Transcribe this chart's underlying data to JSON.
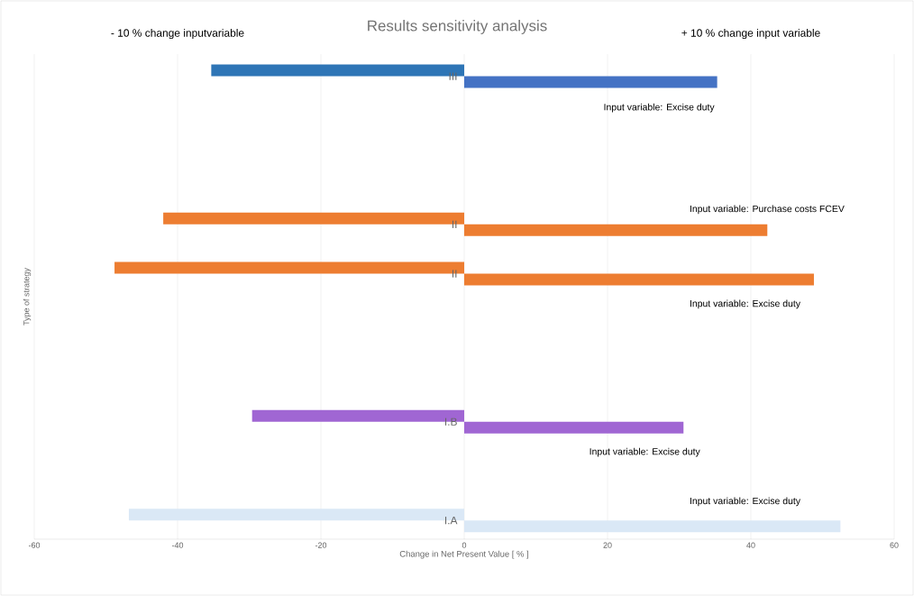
{
  "chart_data": {
    "type": "bar",
    "orientation": "horizontal",
    "title": "Results sensitivity analysis",
    "xlabel": "Change in Net Present Value [ % ]",
    "ylabel": "Type of strategy",
    "categories": [
      "III",
      null,
      null,
      "II",
      "II",
      null,
      null,
      "I.B",
      null,
      "I.A"
    ],
    "series": [
      {
        "values": [
          -35.3,
          null,
          null,
          -42.0,
          -48.8,
          null,
          null,
          -29.6,
          null,
          -46.8
        ],
        "colors": [
          "#2e75b6",
          null,
          null,
          "#ed7d31",
          "#ed7d31",
          null,
          null,
          "#a066d3",
          null,
          "#dae8f6"
        ]
      },
      {
        "values": [
          35.3,
          null,
          null,
          42.3,
          48.8,
          null,
          null,
          30.6,
          null,
          52.5
        ],
        "colors": [
          "#4472c4",
          null,
          null,
          "#ed7d31",
          "#ed7d31",
          null,
          null,
          "#a066d3",
          null,
          "#dae8f6"
        ]
      }
    ],
    "xlim": [
      -60,
      60
    ],
    "xticks": [
      -60,
      -40,
      -20,
      0,
      20,
      40,
      60
    ],
    "grid": "x",
    "annotations": [
      "- 10 % change inputvariable",
      "+ 10 % change input variable",
      "Input variable: Excise duty",
      "Input variable: Purchase costs FCEV",
      "Input variable: Excise duty",
      "Input variable: Excise duty",
      "Input variable: Excise duty"
    ]
  }
}
